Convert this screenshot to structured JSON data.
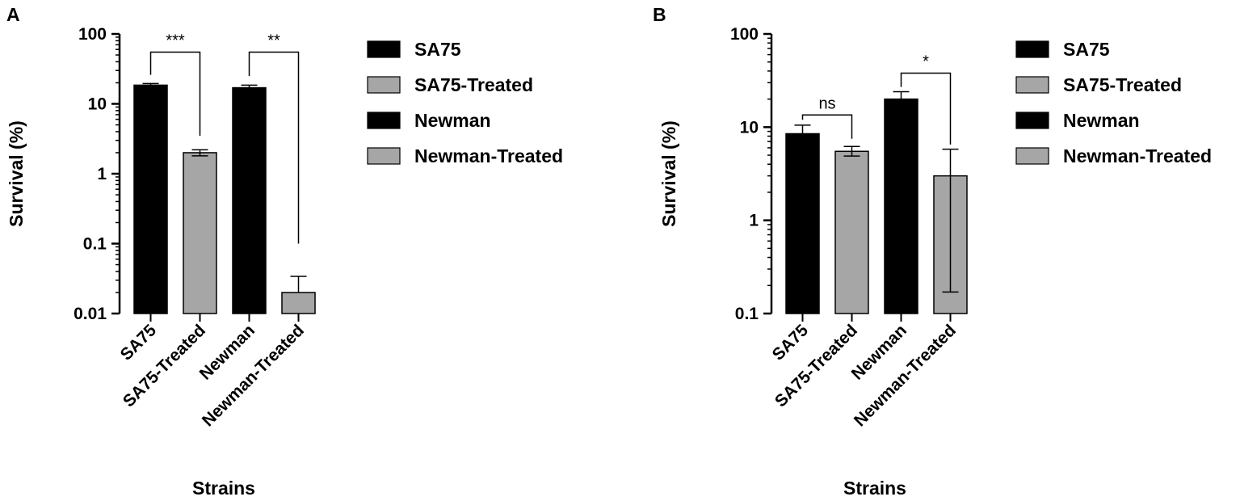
{
  "colors": {
    "untreated": "#000000",
    "treated": "#a6a6a6",
    "axis": "#000000"
  },
  "chart_data": [
    {
      "panel": "A",
      "type": "bar",
      "yscale": "log",
      "ylim": [
        0.01,
        100
      ],
      "yticks": [
        {
          "value": 100,
          "label": "100"
        },
        {
          "value": 10,
          "label": "10"
        },
        {
          "value": 1,
          "label": "1"
        },
        {
          "value": 0.1,
          "label": "0.1"
        },
        {
          "value": 0.01,
          "label": "0.01"
        }
      ],
      "xlabel": "Strains",
      "ylabel": "Survival (%)",
      "categories": [
        "SA75",
        "SA75-Treated",
        "Newman",
        "Newman-Treated"
      ],
      "values": [
        18.5,
        2.0,
        17.0,
        0.02
      ],
      "err_high": [
        19.5,
        2.2,
        18.5,
        0.034
      ],
      "err_low": [
        18.5,
        1.8,
        17.0,
        0.02
      ],
      "colors": [
        "untreated",
        "treated",
        "untreated",
        "treated"
      ],
      "legend": [
        {
          "label": "SA75",
          "color": "untreated"
        },
        {
          "label": "SA75-Treated",
          "color": "treated"
        },
        {
          "label": "Newman",
          "color": "untreated"
        },
        {
          "label": "Newman-Treated",
          "color": "treated"
        }
      ],
      "significance": [
        {
          "from": 0,
          "to": 1,
          "label": "***",
          "y": 55,
          "from_end": 26,
          "to_end": 3.5
        },
        {
          "from": 2,
          "to": 3,
          "label": "**",
          "y": 55,
          "from_end": 25,
          "to_end": 0.1
        }
      ]
    },
    {
      "panel": "B",
      "type": "bar",
      "yscale": "log",
      "ylim": [
        0.1,
        100
      ],
      "yticks": [
        {
          "value": 100,
          "label": "100"
        },
        {
          "value": 10,
          "label": "10"
        },
        {
          "value": 1,
          "label": "1"
        },
        {
          "value": 0.1,
          "label": "0.1"
        }
      ],
      "xlabel": "Strains",
      "ylabel": "Survival (%)",
      "categories": [
        "SA75",
        "SA75-Treated",
        "Newman",
        "Newman-Treated"
      ],
      "values": [
        8.5,
        5.5,
        20.0,
        3.0
      ],
      "err_high": [
        10.5,
        6.2,
        24.0,
        5.8
      ],
      "err_low": [
        8.5,
        4.9,
        20.0,
        0.17
      ],
      "colors": [
        "untreated",
        "treated",
        "untreated",
        "treated"
      ],
      "legend": [
        {
          "label": "SA75",
          "color": "untreated"
        },
        {
          "label": "SA75-Treated",
          "color": "treated"
        },
        {
          "label": "Newman",
          "color": "untreated"
        },
        {
          "label": "Newman-Treated",
          "color": "treated"
        }
      ],
      "significance": [
        {
          "from": 0,
          "to": 1,
          "label": "ns",
          "y": 13.5,
          "from_end": 12,
          "to_end": 7.5
        },
        {
          "from": 2,
          "to": 3,
          "label": "*",
          "y": 38,
          "from_end": 27,
          "to_end": 6.5
        }
      ]
    }
  ]
}
